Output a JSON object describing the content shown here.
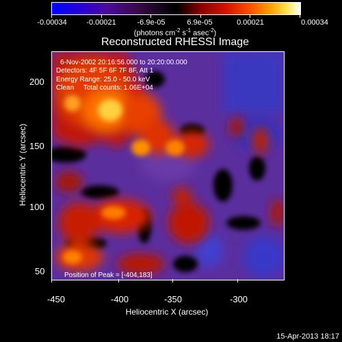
{
  "colorbar": {
    "ticks": [
      "-0.00034",
      "-0.00021",
      "-6.9e-05",
      "6.9e-05",
      "0.00021",
      "0.00034"
    ],
    "unit_main": "(photons cm",
    "unit_exp1": "-2",
    "unit_mid": " s",
    "unit_exp2": "-1",
    "unit_mid2": " asec",
    "unit_exp3": "-2",
    "unit_end": ")"
  },
  "title": "Reconstructed RHESSI Image",
  "info": {
    "line1": "6-Nov-2002 20:16:56.000 to 20:20:00.000",
    "line2": "Detectors: 4F 5F 6F 7F 8F, Att 1",
    "line3": "Energy Range: 25.0 - 50.0 keV",
    "line4": "Clean     Total counts: 1.06E+04",
    "peak": "Position of Peak = [-404,183]"
  },
  "axes": {
    "xlabel": "Heliocentric X (arcsec)",
    "ylabel": "Heliocentric Y (arcsec)",
    "xticks": [
      "-450",
      "-400",
      "-350",
      "-300"
    ],
    "yticks": [
      "200",
      "150",
      "100",
      "50"
    ]
  },
  "date": "15-Apr-2013 18:17"
}
